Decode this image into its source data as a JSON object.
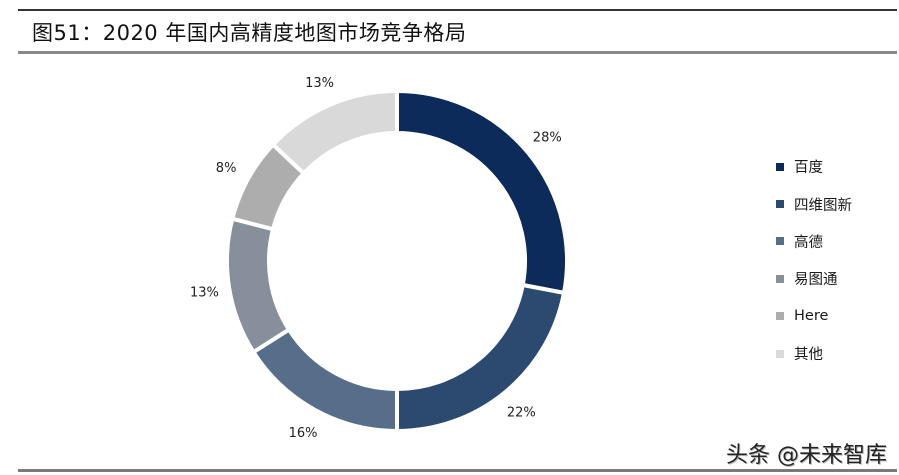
{
  "figure": {
    "title": "图51：2020 年国内高精度地图市场竞争格局",
    "watermark": "头条 @未来智库"
  },
  "chart_data": {
    "type": "pie",
    "variant": "donut",
    "title": "图51：2020 年国内高精度地图市场竞争格局",
    "categories": [
      "百度",
      "四维图新",
      "高德",
      "易图通",
      "Here",
      "其他"
    ],
    "values": [
      28,
      22,
      16,
      13,
      8,
      13
    ],
    "labels": [
      "28%",
      "22%",
      "16%",
      "13%",
      "8%",
      "13%"
    ],
    "unit": "%",
    "colors": [
      "#0c2a5a",
      "#2c4a70",
      "#566e8a",
      "#878e9c",
      "#adadad",
      "#d9d9d9"
    ],
    "start_angle": "12 o'clock",
    "direction": "clockwise",
    "legend_position": "right"
  },
  "legend": {
    "items": [
      {
        "label": "百度",
        "color": "#0c2a5a"
      },
      {
        "label": "四维图新",
        "color": "#2c4a70"
      },
      {
        "label": "高德",
        "color": "#566e8a"
      },
      {
        "label": "易图通",
        "color": "#878e9c"
      },
      {
        "label": "Here",
        "color": "#adadad"
      },
      {
        "label": "其他",
        "color": "#d9d9d9"
      }
    ]
  }
}
